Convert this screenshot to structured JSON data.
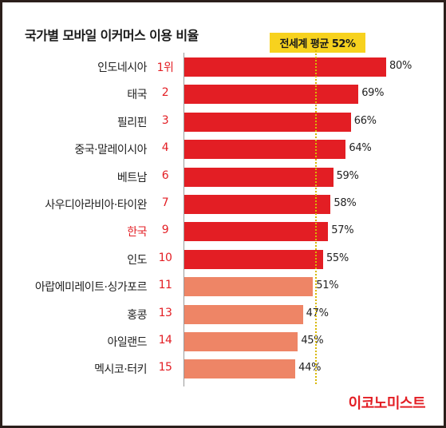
{
  "title": "국가별 모바일 이커머스 이용 비율",
  "average_label": "전세계 평균 52%",
  "brand": "이코노미스트",
  "colors": {
    "bar_primary": "#e31e24",
    "bar_secondary": "#ee8566",
    "rank": "#e31e24",
    "average_box": "#f7d21e"
  },
  "chart_data": {
    "type": "bar",
    "orientation": "horizontal",
    "title": "국가별 모바일 이커머스 이용 비율",
    "average": 52,
    "xlim": [
      0,
      80
    ],
    "rows": [
      {
        "country": "인도네시아",
        "rank": "1위",
        "value": 80,
        "label": "80%",
        "highlight": false,
        "above_average": true
      },
      {
        "country": "태국",
        "rank": "2",
        "value": 69,
        "label": "69%",
        "highlight": false,
        "above_average": true
      },
      {
        "country": "필리핀",
        "rank": "3",
        "value": 66,
        "label": "66%",
        "highlight": false,
        "above_average": true
      },
      {
        "country": "중국·말레이시아",
        "rank": "4",
        "value": 64,
        "label": "64%",
        "highlight": false,
        "above_average": true
      },
      {
        "country": "베트남",
        "rank": "6",
        "value": 59,
        "label": "59%",
        "highlight": false,
        "above_average": true
      },
      {
        "country": "사우디아라비아·타이완",
        "rank": "7",
        "value": 58,
        "label": "58%",
        "highlight": false,
        "above_average": true
      },
      {
        "country": "한국",
        "rank": "9",
        "value": 57,
        "label": "57%",
        "highlight": true,
        "above_average": true
      },
      {
        "country": "인도",
        "rank": "10",
        "value": 55,
        "label": "55%",
        "highlight": false,
        "above_average": true
      },
      {
        "country": "아랍에미레이트·싱가포르",
        "rank": "11",
        "value": 51,
        "label": "51%",
        "highlight": false,
        "above_average": false
      },
      {
        "country": "홍콩",
        "rank": "13",
        "value": 47,
        "label": "47%",
        "highlight": false,
        "above_average": false
      },
      {
        "country": "아일랜드",
        "rank": "14",
        "value": 45,
        "label": "45%",
        "highlight": false,
        "above_average": false
      },
      {
        "country": "멕시코·터키",
        "rank": "15",
        "value": 44,
        "label": "44%",
        "highlight": false,
        "above_average": false
      }
    ]
  }
}
